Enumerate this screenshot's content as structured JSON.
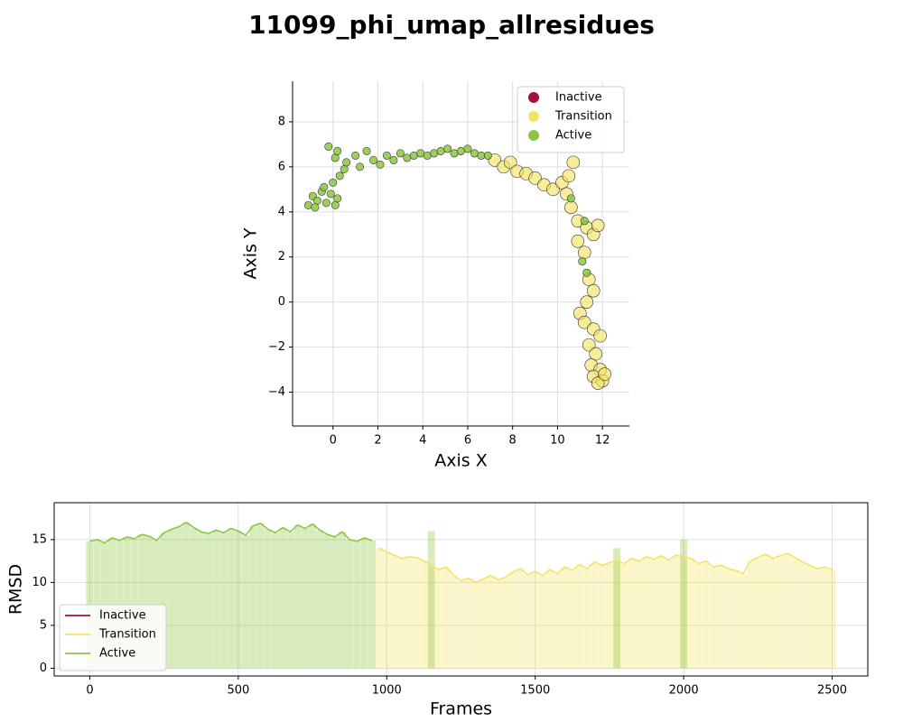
{
  "title": "11099_phi_umap_allresidues",
  "chart_data": [
    {
      "type": "scatter",
      "x_label": "Axis X",
      "y_label": "Axis Y",
      "xlim": [
        -1.8,
        13.2
      ],
      "xticks": [
        0,
        2,
        4,
        6,
        8,
        10,
        12
      ],
      "ylim": [
        -5.5,
        9.8
      ],
      "yticks": [
        {
          "value": -4,
          "label": "−4"
        },
        {
          "value": -2,
          "label": "−2"
        },
        0,
        2,
        4,
        6,
        8
      ],
      "grid": true,
      "legend": "upper-right",
      "series": [
        {
          "name": "Inactive",
          "color": "#a50f45",
          "x": [],
          "y": []
        },
        {
          "name": "Transition",
          "color": "#f2e464",
          "x": [
            7.2,
            7.6,
            7.9,
            8.2,
            8.6,
            9.0,
            9.4,
            9.8,
            10.2,
            10.5,
            10.7,
            10.4,
            10.6,
            10.9,
            11.3,
            11.6,
            11.8,
            10.9,
            11.2,
            11.4,
            11.6,
            11.3,
            11.0,
            11.2,
            11.6,
            11.9,
            11.4,
            11.7,
            11.5,
            11.9,
            11.6,
            12.0,
            11.8,
            12.1
          ],
          "y": [
            6.3,
            6.0,
            6.2,
            5.8,
            5.7,
            5.5,
            5.2,
            5.0,
            5.3,
            5.6,
            6.2,
            4.8,
            4.2,
            3.6,
            3.3,
            3.0,
            3.4,
            2.7,
            2.2,
            1.0,
            0.5,
            0.0,
            -0.5,
            -0.9,
            -1.2,
            -1.5,
            -1.9,
            -2.3,
            -2.8,
            -3.0,
            -3.3,
            -3.5,
            -3.6,
            -3.2
          ]
        },
        {
          "name": "Active",
          "color": "#8dc63f",
          "x": [
            -1.1,
            -0.9,
            -0.7,
            -0.5,
            -0.3,
            -0.1,
            0.1,
            -0.8,
            -0.4,
            0.2,
            0.0,
            0.3,
            0.5,
            0.1,
            -0.2,
            0.2,
            0.6,
            1.0,
            1.2,
            1.5,
            1.8,
            2.1,
            2.4,
            2.7,
            3.0,
            3.3,
            3.6,
            3.9,
            4.2,
            4.5,
            4.8,
            5.1,
            5.4,
            5.7,
            6.0,
            6.3,
            6.6,
            6.9,
            11.1,
            11.3,
            11.2,
            10.6
          ],
          "y": [
            4.3,
            4.7,
            4.5,
            4.9,
            4.4,
            4.8,
            4.3,
            4.2,
            5.1,
            4.6,
            5.3,
            5.6,
            5.9,
            6.4,
            6.9,
            6.7,
            6.2,
            6.5,
            6.0,
            6.7,
            6.3,
            6.1,
            6.5,
            6.3,
            6.6,
            6.4,
            6.5,
            6.6,
            6.5,
            6.6,
            6.7,
            6.8,
            6.6,
            6.7,
            6.8,
            6.6,
            6.5,
            6.5,
            1.8,
            1.3,
            3.6,
            4.6
          ]
        }
      ]
    },
    {
      "type": "line",
      "x_label": "Frames",
      "y_label": "RMSD",
      "xlim": [
        -120,
        2620
      ],
      "xticks": [
        0,
        500,
        1000,
        1500,
        2000,
        2500
      ],
      "ylim": [
        -0.9,
        19.3
      ],
      "yticks": [
        0,
        5,
        10,
        15
      ],
      "grid": true,
      "legend": "lower-left",
      "x": [
        0,
        25,
        50,
        75,
        100,
        125,
        150,
        175,
        200,
        225,
        250,
        275,
        300,
        325,
        350,
        375,
        400,
        425,
        450,
        475,
        500,
        525,
        550,
        575,
        600,
        625,
        650,
        675,
        700,
        725,
        750,
        775,
        800,
        825,
        850,
        875,
        900,
        925,
        950,
        975,
        1000,
        1025,
        1050,
        1075,
        1100,
        1125,
        1150,
        1175,
        1200,
        1225,
        1250,
        1275,
        1300,
        1325,
        1350,
        1375,
        1400,
        1425,
        1450,
        1475,
        1500,
        1525,
        1550,
        1575,
        1600,
        1625,
        1650,
        1675,
        1700,
        1725,
        1750,
        1775,
        1800,
        1825,
        1850,
        1875,
        1900,
        1925,
        1950,
        1975,
        2000,
        2025,
        2050,
        2075,
        2100,
        2125,
        2150,
        2175,
        2200,
        2225,
        2250,
        2275,
        2300,
        2325,
        2350,
        2375,
        2400,
        2425,
        2450,
        2475,
        2500
      ],
      "series": [
        {
          "name": "Inactive",
          "color": "#a50f45",
          "values": [
            null,
            null,
            null,
            null,
            null,
            null,
            null,
            null,
            null,
            null,
            null,
            null,
            null,
            null,
            null,
            null,
            null,
            null,
            null,
            null,
            null,
            null,
            null,
            null,
            null,
            null,
            null,
            null,
            null,
            null,
            null,
            null,
            null,
            null,
            null,
            null,
            null,
            null,
            null,
            null,
            null,
            null,
            null,
            null,
            null,
            null,
            null,
            null,
            null,
            null,
            null,
            null,
            null,
            null,
            null,
            null,
            null,
            null,
            null,
            null,
            null,
            null,
            null,
            null,
            null,
            null,
            null,
            null,
            null,
            null,
            null,
            null,
            null,
            null,
            null,
            null,
            null,
            null,
            null,
            null,
            null,
            null,
            null,
            null,
            null,
            null,
            null,
            null,
            null,
            null,
            null,
            null,
            null,
            null,
            null,
            null,
            null,
            null,
            null,
            null,
            null
          ]
        },
        {
          "name": "Transition",
          "color": "#f2e464",
          "values": [
            null,
            null,
            null,
            null,
            null,
            null,
            null,
            null,
            null,
            null,
            null,
            null,
            null,
            null,
            null,
            null,
            null,
            null,
            null,
            null,
            null,
            null,
            null,
            null,
            null,
            null,
            null,
            null,
            null,
            null,
            null,
            null,
            null,
            null,
            null,
            null,
            null,
            null,
            null,
            14.0,
            13.5,
            13.2,
            12.8,
            13.0,
            12.9,
            12.5,
            12.0,
            11.5,
            11.8,
            10.8,
            10.2,
            10.5,
            10.0,
            10.4,
            10.8,
            10.3,
            10.6,
            11.2,
            11.6,
            10.9,
            11.3,
            10.8,
            11.5,
            11.0,
            11.8,
            11.4,
            12.1,
            11.6,
            12.4,
            12.0,
            12.3,
            12.6,
            12.2,
            12.8,
            12.5,
            13.0,
            12.7,
            13.1,
            12.6,
            13.2,
            13.0,
            12.8,
            12.2,
            12.5,
            11.8,
            12.0,
            11.6,
            11.4,
            11.0,
            12.5,
            12.9,
            13.3,
            12.8,
            13.1,
            13.4,
            12.9,
            12.4,
            12.0,
            11.6,
            11.8,
            11.5
          ]
        },
        {
          "name": "Active",
          "color": "#8dc63f",
          "values": [
            14.8,
            15.0,
            14.6,
            15.2,
            14.9,
            15.3,
            15.1,
            15.6,
            15.4,
            14.9,
            15.8,
            16.2,
            16.5,
            17.0,
            16.4,
            15.9,
            15.7,
            16.1,
            15.8,
            16.3,
            16.0,
            15.5,
            16.6,
            16.9,
            16.2,
            15.8,
            16.4,
            15.9,
            16.7,
            16.3,
            16.8,
            16.1,
            15.6,
            15.3,
            15.9,
            15.0,
            14.8,
            15.2,
            14.9,
            null,
            null,
            null,
            null,
            null,
            null,
            null,
            16.0,
            null,
            null,
            null,
            null,
            null,
            null,
            null,
            null,
            null,
            null,
            null,
            null,
            null,
            null,
            null,
            null,
            null,
            null,
            null,
            null,
            null,
            null,
            null,
            null,
            14.0,
            null,
            null,
            null,
            null,
            null,
            null,
            null,
            null,
            15.0,
            null,
            null,
            null,
            null,
            null,
            null,
            null,
            null,
            null,
            null,
            null,
            null,
            null,
            null,
            null,
            null,
            null,
            null,
            null,
            null
          ]
        }
      ]
    }
  ]
}
